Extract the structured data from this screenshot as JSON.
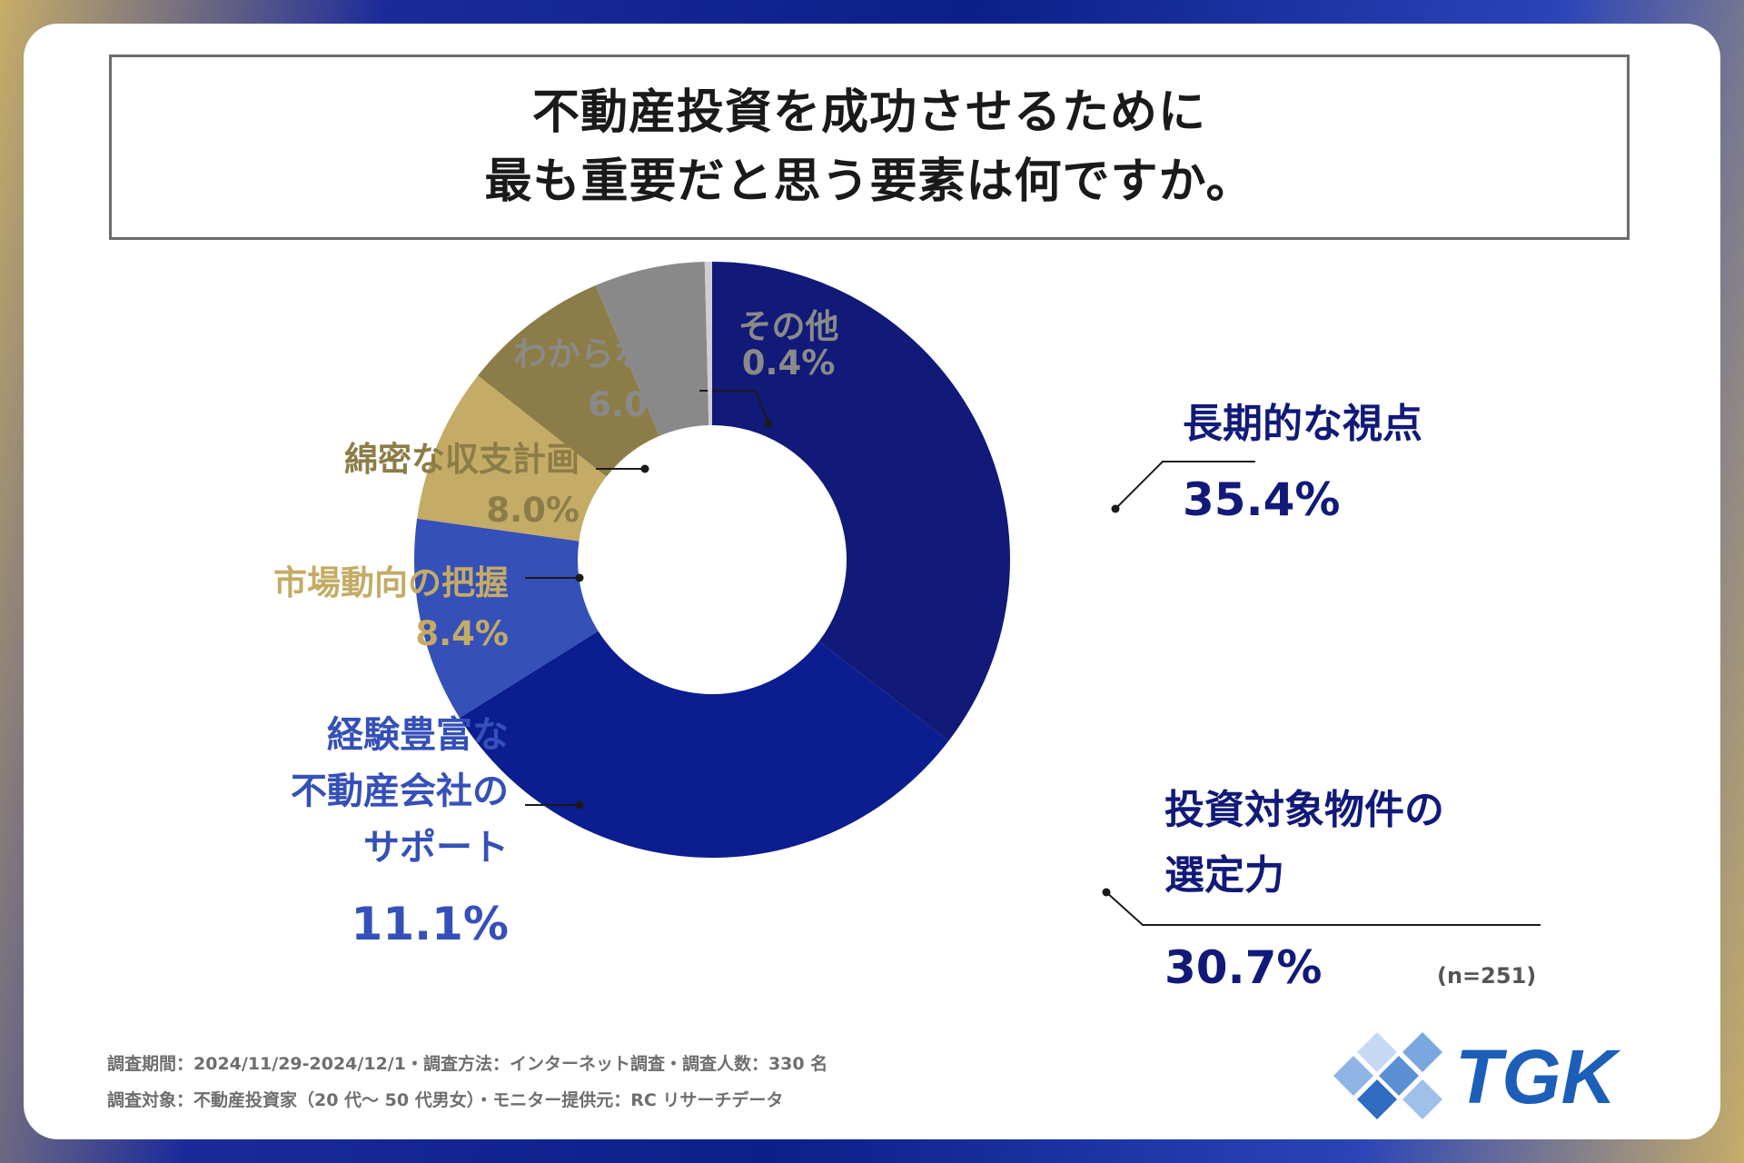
{
  "title": {
    "line1": "不動産投資を成功させるために",
    "line2": "最も重要だと思う要素は何ですか。"
  },
  "chart_data": {
    "type": "pie",
    "donut": true,
    "start": "top",
    "direction": "clockwise",
    "unit": "%",
    "slices": [
      {
        "label": "長期的な視点",
        "value": 35.4,
        "value_text": "35.4%",
        "color": "#111a78"
      },
      {
        "label": "投資対象物件の選定力",
        "value": 30.7,
        "value_text": "30.7%",
        "color": "#0c1d8f"
      },
      {
        "label": "経験豊富な不動産会社のサポート",
        "value": 11.1,
        "value_text": "11.1%",
        "color": "#3550b8"
      },
      {
        "label": "市場動向の把握",
        "value": 8.4,
        "value_text": "8.4%",
        "color": "#c4ab66"
      },
      {
        "label": "綿密な収支計画",
        "value": 8.0,
        "value_text": "8.0%",
        "color": "#8c7c47"
      },
      {
        "label": "わからない",
        "value": 6.0,
        "value_text": "6.0%",
        "color": "#898989"
      },
      {
        "label": "その他",
        "value": 0.4,
        "value_text": "0.4%",
        "color": "#cfcfcf"
      }
    ],
    "label_lines": {
      "長期的な視点": [
        "長期的な視点"
      ],
      "投資対象物件の選定力": [
        "投資対象物件の",
        "選定力"
      ],
      "経験豊富な不動産会社のサポート": [
        "経験豊富な",
        "不動産会社の",
        "サポート"
      ],
      "市場動向の把握": [
        "市場動向の把握"
      ],
      "綿密な収支計画": [
        "綿密な収支計画"
      ],
      "わからない": [
        "わからない"
      ],
      "その他": [
        "その他"
      ]
    },
    "label_colors": {
      "長期的な視点": "#111a78",
      "投資対象物件の選定力": "#111a78",
      "経験豊富な不動産会社のサポート": "#3550b8",
      "市場動向の把握": "#c4ab66",
      "綿密な収支計画": "#8c7c47",
      "わからない": "#8a8a8a",
      "その他": "#8a8a8a"
    }
  },
  "sample": "(n=251)",
  "footer": {
    "line1": "調査期間：2024/11/29-2024/12/1・調査方法：インターネット調査・調査人数：330 名",
    "line2": "調査対象：不動産投資家（20 代〜 50 代男女）・モニター提供元：RC リサーチデータ"
  },
  "logo": {
    "text": "TGK",
    "color": "#1d5fb8",
    "icon": "diamond-tiles-logo-icon"
  }
}
